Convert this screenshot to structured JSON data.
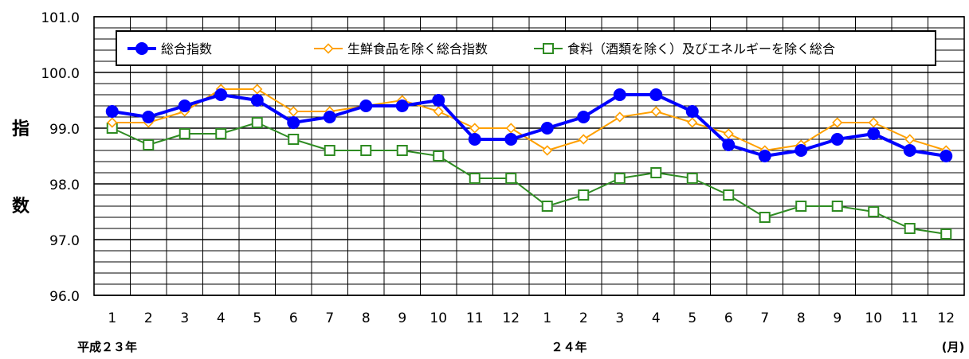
{
  "chart_data": {
    "type": "line",
    "title": "",
    "ylabel": "指数",
    "ylabel_chars": [
      "指",
      "数"
    ],
    "ylim": [
      96.0,
      101.0
    ],
    "ytick_labels": [
      "96.0",
      "97.0",
      "98.0",
      "99.0",
      "100.0",
      "101.0"
    ],
    "x": [
      "1",
      "2",
      "3",
      "4",
      "5",
      "6",
      "7",
      "8",
      "9",
      "10",
      "11",
      "12",
      "1",
      "2",
      "3",
      "4",
      "5",
      "6",
      "7",
      "8",
      "9",
      "10",
      "11",
      "12"
    ],
    "year_labels": [
      "平成２３年",
      "２４年"
    ],
    "unit_label": "(月)",
    "grid": true,
    "legend_position": "top",
    "series": [
      {
        "name": "総合指数",
        "color": "#0000ff",
        "marker": "filled-circle",
        "values": [
          99.3,
          99.2,
          99.4,
          99.6,
          99.5,
          99.1,
          99.2,
          99.4,
          99.4,
          99.5,
          98.8,
          98.8,
          99.0,
          99.2,
          99.6,
          99.6,
          99.3,
          98.7,
          98.5,
          98.6,
          98.8,
          98.9,
          98.6,
          98.5
        ]
      },
      {
        "name": "生鮮食品を除く総合指数",
        "color": "#ffa000",
        "marker": "diamond",
        "values": [
          99.1,
          99.1,
          99.3,
          99.7,
          99.7,
          99.3,
          99.3,
          99.4,
          99.5,
          99.3,
          99.0,
          99.0,
          98.6,
          98.8,
          99.2,
          99.3,
          99.1,
          98.9,
          98.6,
          98.7,
          99.1,
          99.1,
          98.8,
          98.6
        ]
      },
      {
        "name": "食料（酒類を除く）及びエネルギーを除く総合",
        "color": "#2e8b22",
        "marker": "square",
        "values": [
          99.0,
          98.7,
          98.9,
          98.9,
          99.1,
          98.8,
          98.6,
          98.6,
          98.6,
          98.5,
          98.1,
          98.1,
          97.6,
          97.8,
          98.1,
          98.2,
          98.1,
          97.8,
          97.4,
          97.6,
          97.6,
          97.5,
          97.2,
          97.1
        ]
      }
    ]
  }
}
